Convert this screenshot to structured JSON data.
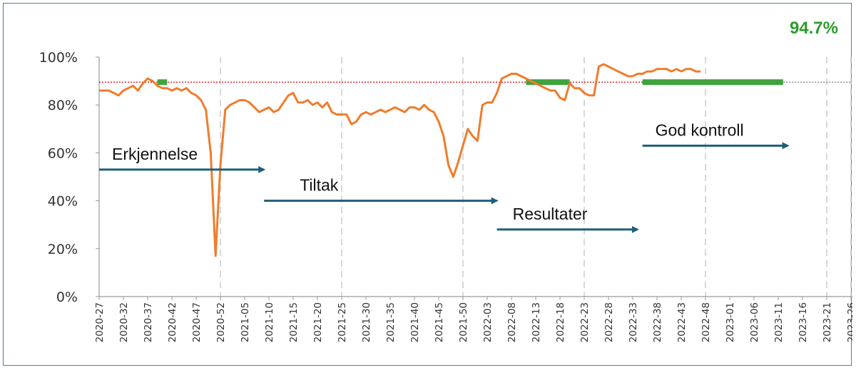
{
  "chart_data": {
    "type": "line",
    "title": "",
    "headline_value": "94.7%",
    "xlabel": "",
    "ylabel": "",
    "ylim": [
      0,
      100
    ],
    "grid": "vertical dashed lines at every 5th label",
    "y_ticks": [
      "0%",
      "20%",
      "40%",
      "60%",
      "80%",
      "100%"
    ],
    "x_ticks": [
      "2020-27",
      "2020-32",
      "2020-37",
      "2020-42",
      "2020-47",
      "2020-52",
      "2021-05",
      "2021-10",
      "2021-15",
      "2021-20",
      "2021-25",
      "2021-30",
      "2021-35",
      "2021-40",
      "2021-45",
      "2021-50",
      "2022-03",
      "2022-08",
      "2022-13",
      "2022-18",
      "2022-23",
      "2022-28",
      "2022-33",
      "2022-38",
      "2022-43",
      "2022-48",
      "2023-01",
      "2023-06",
      "2023-11",
      "2023-16",
      "2023-21",
      "2023-26"
    ],
    "target": 89.5,
    "series": [
      {
        "color": "#f07c2c",
        "values": [
          86,
          86,
          86,
          85,
          84,
          86,
          87,
          88,
          86,
          89,
          91,
          90,
          88,
          87,
          87,
          86,
          87,
          86,
          87,
          85,
          84,
          82,
          78,
          60,
          17,
          55,
          78,
          80,
          81,
          82,
          82,
          81,
          79,
          77,
          78,
          79,
          77,
          78,
          81,
          84,
          85,
          81,
          81,
          82,
          80,
          81,
          79,
          81,
          77,
          76,
          76,
          76,
          72,
          73,
          76,
          77,
          76,
          77,
          78,
          77,
          78,
          79,
          78,
          77,
          79,
          79,
          78,
          80,
          78,
          77,
          73,
          67,
          55,
          50,
          56,
          63,
          70,
          67,
          65,
          80,
          81,
          81,
          85,
          91,
          92,
          93,
          93,
          92,
          91,
          90,
          89,
          88,
          87,
          86,
          86,
          83,
          82,
          89,
          87,
          87,
          85,
          84,
          84,
          96,
          97,
          96,
          95,
          94,
          93,
          92,
          92,
          93,
          93,
          94,
          94,
          95,
          95,
          95,
          94,
          95,
          94,
          95,
          95,
          94,
          94
        ]
      }
    ],
    "on_target_bands": [
      {
        "from": "2020-39",
        "to": "2020-41"
      },
      {
        "from": "2022-10",
        "to": "2022-19"
      },
      {
        "from": "2022-34",
        "to": "2023-11"
      }
    ],
    "phase_arrows": [
      {
        "label": "Erkjennelse",
        "from": "2020-27",
        "to": "2021-08",
        "level": 53
      },
      {
        "label": "Tiltak",
        "from": "2021-08",
        "to": "2022-04",
        "level": 40
      },
      {
        "label": "Resultater",
        "from": "2022-04",
        "to": "2022-33",
        "level": 28
      },
      {
        "label": "God kontroll",
        "from": "2022-34",
        "to": "2023-12",
        "level": 63
      }
    ],
    "colors": {
      "line": "#f07c2c",
      "target": "#e23030",
      "on_target": "#3fa33f",
      "arrow": "#1f5f7a",
      "headline": "#2e9b2e"
    }
  }
}
